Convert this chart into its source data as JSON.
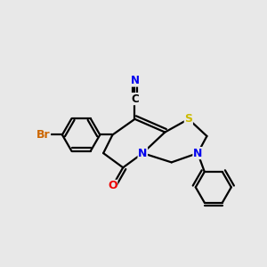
{
  "bg_color": "#e8e8e8",
  "bond_color": "#000000",
  "bond_lw": 1.6,
  "atom_colors": {
    "Br": "#cc6600",
    "N": "#0000ee",
    "O": "#ee0000",
    "S": "#ccbb00",
    "C": "#000000"
  },
  "figsize": [
    3.0,
    3.0
  ],
  "dpi": 100,
  "xlim": [
    0.0,
    10.0
  ],
  "ylim": [
    1.5,
    9.5
  ],
  "label_fontsize": 9.0
}
